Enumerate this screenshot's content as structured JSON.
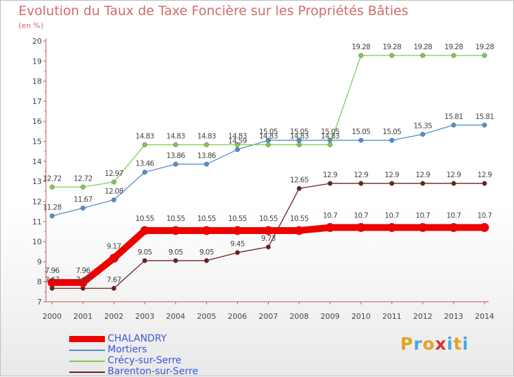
{
  "header": {
    "title": "Evolution du Taux de Taxe Foncière sur les Propriétés Bâties",
    "subtitle": "(en %)"
  },
  "logo": {
    "letters": [
      "P",
      "r",
      "o",
      "x",
      "i",
      "t",
      "i"
    ],
    "colors": [
      "#e8a020",
      "#4aa8d8",
      "#e8a020",
      "#d83030",
      "#4aa8d8",
      "#e8a020",
      "#4aa8d8"
    ]
  },
  "chart_data": {
    "type": "line",
    "title": "Evolution du Taux de Taxe Foncière sur les Propriétés Bâties",
    "ylabel": "(en %)",
    "xlabel": "",
    "ylim": [
      7,
      20
    ],
    "yticks": [
      7,
      8,
      9,
      10,
      11,
      12,
      13,
      14,
      15,
      16,
      17,
      18,
      19,
      20
    ],
    "categories": [
      "2000",
      "2001",
      "2002",
      "2003",
      "2004",
      "2005",
      "2006",
      "2007",
      "2008",
      "2009",
      "2010",
      "2011",
      "2012",
      "2013",
      "2014"
    ],
    "legend_position": "bottom-left",
    "grid": false,
    "series": [
      {
        "name": "CHALANDRY",
        "color": "#ee0000",
        "emphasis": true,
        "values": [
          7.96,
          7.96,
          9.17,
          10.55,
          10.55,
          10.55,
          10.55,
          10.55,
          10.55,
          10.7,
          10.7,
          10.7,
          10.7,
          10.7,
          10.7
        ],
        "labels": [
          "7.96",
          "7.96",
          "9.17",
          "10.55",
          "10.55",
          "10.55",
          "10.55",
          "10.55",
          "10.55",
          "10.7",
          "10.7",
          "10.7",
          "10.7",
          "10.7",
          "10.7"
        ]
      },
      {
        "name": "Mortiers",
        "color": "#4f8fce",
        "values": [
          11.28,
          11.67,
          12.08,
          13.46,
          13.86,
          13.86,
          14.59,
          15.05,
          15.05,
          15.05,
          15.05,
          15.05,
          15.35,
          15.81,
          15.81
        ],
        "labels": [
          "11.28",
          "11.67",
          "12.08",
          "13.46",
          "13.86",
          "13.86",
          "14.59",
          "15.05",
          "15.05",
          "15.05",
          "15.05",
          "15.05",
          "15.35",
          "15.81",
          "15.81"
        ]
      },
      {
        "name": "Crécy-sur-Serre",
        "color": "#7fcc4c",
        "values": [
          12.72,
          12.72,
          12.97,
          14.83,
          14.83,
          14.83,
          14.83,
          14.83,
          14.83,
          14.83,
          19.28,
          19.28,
          19.28,
          19.28,
          19.28
        ],
        "labels": [
          "12.72",
          "12.72",
          "12.97",
          "14.83",
          "14.83",
          "14.83",
          "14.83",
          "14.83",
          "14.83",
          "14.83",
          "19.28",
          "19.28",
          "19.28",
          "19.28",
          "19.28"
        ]
      },
      {
        "name": "Barenton-sur-Serre",
        "color": "#6b1f1f",
        "values": [
          7.67,
          7.67,
          7.67,
          9.05,
          9.05,
          9.05,
          9.45,
          9.73,
          12.65,
          12.9,
          12.9,
          12.9,
          12.9,
          12.9,
          12.9
        ],
        "labels": [
          "7.67",
          "7.67",
          "7.67",
          "9.05",
          "9.05",
          "9.05",
          "9.45",
          "9.73",
          "12.65",
          "12.9",
          "12.9",
          "12.9",
          "12.9",
          "12.9",
          "12.9"
        ]
      }
    ]
  }
}
